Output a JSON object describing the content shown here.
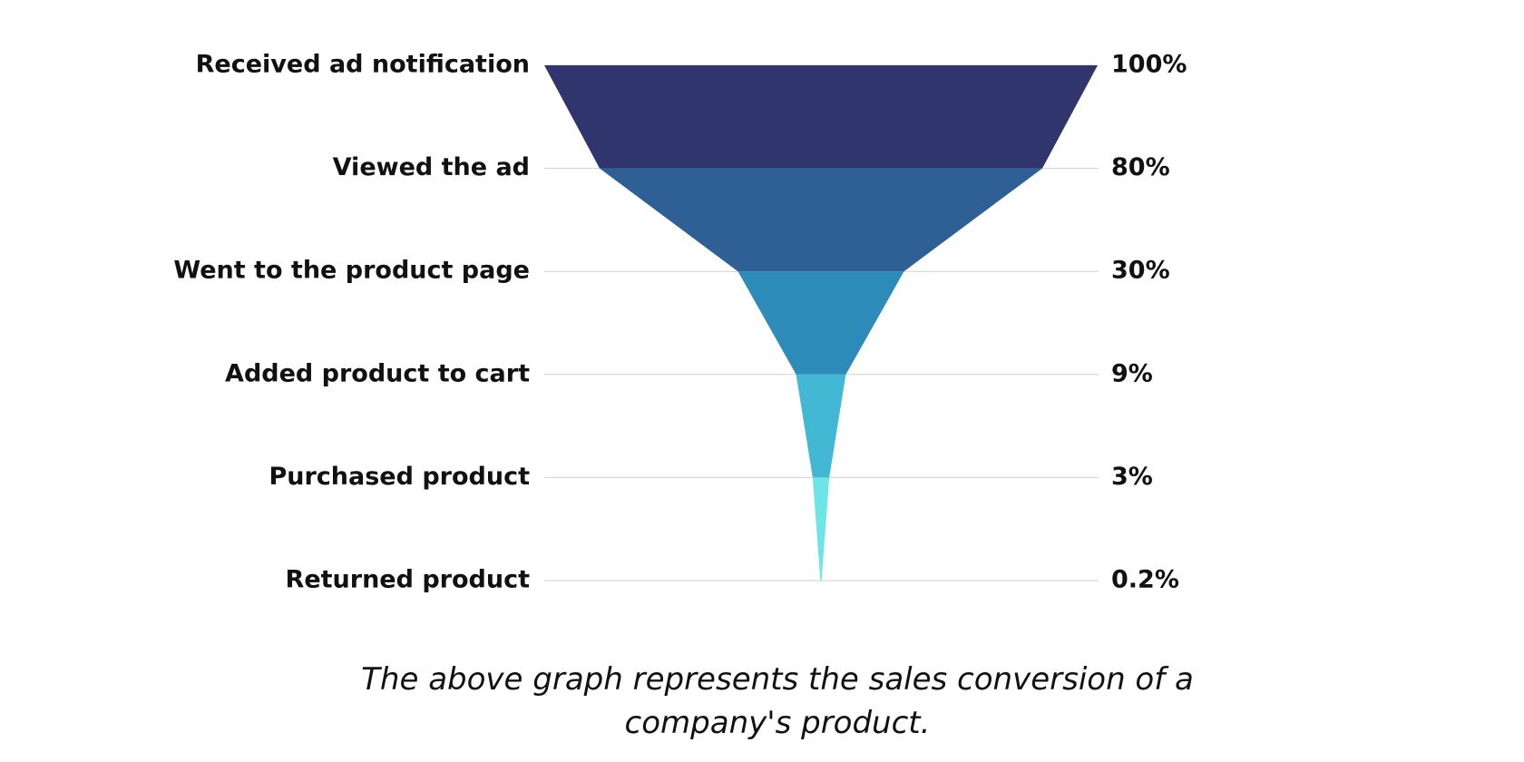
{
  "chart_data": {
    "type": "funnel",
    "categories": [
      "Received ad notification",
      "Viewed the ad",
      "Went to the product page",
      "Added product to cart",
      "Purchased product",
      "Returned product"
    ],
    "values": [
      100,
      80,
      30,
      9,
      3,
      0.2
    ],
    "value_labels": [
      "100%",
      "80%",
      "30%",
      "9%",
      "3%",
      "0.2%"
    ],
    "colors": [
      "#31356e",
      "#2e6096",
      "#2c8bb8",
      "#42b8d5",
      "#6de4e6"
    ],
    "grid": true,
    "caption": "The above graph represents the sales conversion of a company's product."
  }
}
